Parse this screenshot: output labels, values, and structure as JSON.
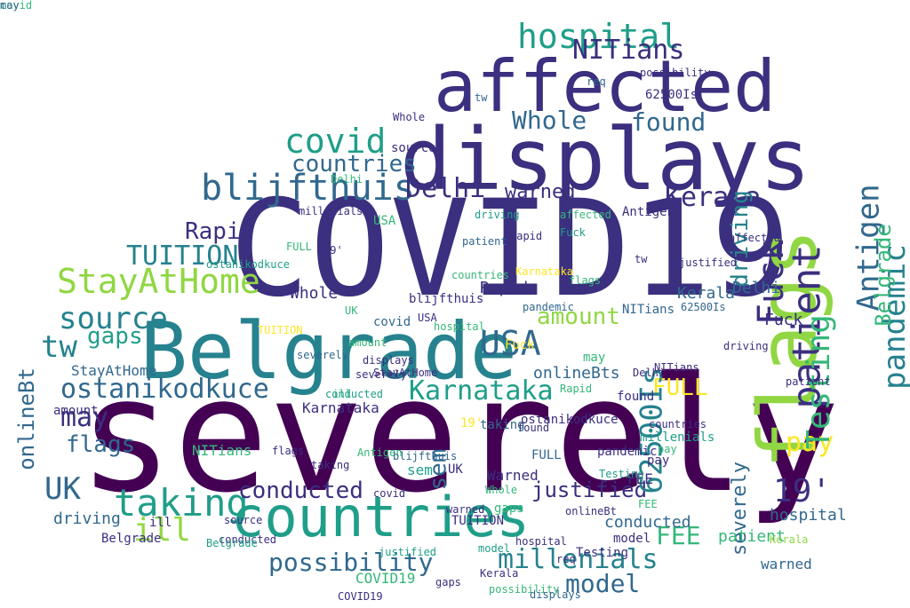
{
  "palette": {
    "dark_purple": "#440154",
    "indigo": "#3b2f7f",
    "slate_blue": "#31688e",
    "teal": "#26828e",
    "sea_green": "#1f9e89",
    "green": "#35b779",
    "lime": "#90d743",
    "yellow": "#fde725"
  },
  "words": [
    {
      "text": "severely",
      "color": "#440154",
      "rotate": false
    },
    {
      "text": "COVID19",
      "color": "#3b2f7f",
      "rotate": false
    },
    {
      "text": "displays",
      "color": "#3b2f7f",
      "rotate": false
    },
    {
      "text": "affected",
      "color": "#3b2f7f",
      "rotate": false
    },
    {
      "text": "Belgrade",
      "color": "#26828e",
      "rotate": false
    },
    {
      "text": "flags",
      "color": "#90d743",
      "rotate": false
    },
    {
      "text": "countries",
      "color": "#1f9e89",
      "rotate": false
    },
    {
      "text": "blijfthuis",
      "color": "#31688e",
      "rotate": false
    },
    {
      "text": "hospital",
      "color": "#1f9e89",
      "rotate": false
    },
    {
      "text": "covid",
      "color": "#1f9e89",
      "rotate": false
    },
    {
      "text": "countries",
      "color": "#31688e",
      "rotate": false
    },
    {
      "text": "NITians",
      "color": "#3b2f7f",
      "rotate": false
    },
    {
      "text": "Whole",
      "color": "#31688e",
      "rotate": false
    },
    {
      "text": "found",
      "color": "#31688e",
      "rotate": false
    },
    {
      "text": "Delhi",
      "color": "#3b2f7f",
      "rotate": false
    },
    {
      "text": "warned",
      "color": "#3b2f7f",
      "rotate": false
    },
    {
      "text": "Kerala",
      "color": "#3b2f7f",
      "rotate": false
    },
    {
      "text": "Rapid",
      "color": "#3b2f7f",
      "rotate": false
    },
    {
      "text": "TUITION",
      "color": "#26828e",
      "rotate": false
    },
    {
      "text": "StayAtHome",
      "color": "#90d743",
      "rotate": false
    },
    {
      "text": "source",
      "color": "#26828e",
      "rotate": false
    },
    {
      "text": "tw",
      "color": "#26828e",
      "rotate": false
    },
    {
      "text": "gaps",
      "color": "#1f9e89",
      "rotate": false
    },
    {
      "text": "USA",
      "color": "#31688e",
      "rotate": false
    },
    {
      "text": "amount",
      "color": "#90d743",
      "rotate": false
    },
    {
      "text": "ostanikodkuce",
      "color": "#31688e",
      "rotate": false
    },
    {
      "text": "Karnataka",
      "color": "#1f9e89",
      "rotate": false
    },
    {
      "text": "may",
      "color": "#3b2f7f",
      "rotate": false
    },
    {
      "text": "onlineBt",
      "color": "#31688e",
      "rotate": true
    },
    {
      "text": "flags",
      "color": "#31688e",
      "rotate": false
    },
    {
      "text": "UK",
      "color": "#31688e",
      "rotate": false
    },
    {
      "text": "taking",
      "color": "#1f9e89",
      "rotate": false
    },
    {
      "text": "conducted",
      "color": "#3b2f7f",
      "rotate": false
    },
    {
      "text": "ill",
      "color": "#90d743",
      "rotate": false
    },
    {
      "text": "possibility",
      "color": "#31688e",
      "rotate": false
    },
    {
      "text": "model",
      "color": "#31688e",
      "rotate": false
    },
    {
      "text": "millenials",
      "color": "#26828e",
      "rotate": false
    },
    {
      "text": "justified",
      "color": "#3b2f7f",
      "rotate": false
    },
    {
      "text": "19'",
      "color": "#3b2f7f",
      "rotate": false
    },
    {
      "text": "FEE",
      "color": "#35b779",
      "rotate": false
    },
    {
      "text": "pay",
      "color": "#fde725",
      "rotate": false
    },
    {
      "text": "FULL",
      "color": "#fde725",
      "rotate": false
    },
    {
      "text": "Fuck",
      "color": "#3b2f7f",
      "rotate": true
    },
    {
      "text": "patient",
      "color": "#3b2f7f",
      "rotate": true
    },
    {
      "text": "Testing",
      "color": "#35b779",
      "rotate": true
    },
    {
      "text": "pandemic",
      "color": "#26828e",
      "rotate": true
    },
    {
      "text": "Antigen",
      "color": "#31688e",
      "rotate": true
    },
    {
      "text": "driving",
      "color": "#26828e",
      "rotate": true
    },
    {
      "text": "62500Is",
      "color": "#26828e",
      "rotate": true
    },
    {
      "text": "sem",
      "color": "#31688e",
      "rotate": true
    },
    {
      "text": "Belgrade",
      "color": "#35b779",
      "rotate": true
    },
    {
      "text": "severely",
      "color": "#31688e",
      "rotate": true
    },
    {
      "text": "conducted",
      "color": "#31688e",
      "rotate": false
    },
    {
      "text": "hospital",
      "color": "#31688e",
      "rotate": false
    },
    {
      "text": "patient",
      "color": "#35b779",
      "rotate": false
    },
    {
      "text": "warned",
      "color": "#31688e",
      "rotate": false
    },
    {
      "text": "driving",
      "color": "#31688e",
      "rotate": false
    },
    {
      "text": "Whole",
      "color": "#3b2f7f",
      "rotate": false
    },
    {
      "text": "Fuck",
      "color": "#3b2f7f",
      "rotate": false
    },
    {
      "text": "Delhi",
      "color": "#31688e",
      "rotate": false
    },
    {
      "text": "Rapid",
      "color": "#3b2f7f",
      "rotate": false
    },
    {
      "text": "Kerala",
      "color": "#31688e",
      "rotate": false
    },
    {
      "text": "covid",
      "color": "#31688e",
      "rotate": false
    },
    {
      "text": "NITians",
      "color": "#31688e",
      "rotate": false
    },
    {
      "text": "StayAtHome",
      "color": "#31688e",
      "rotate": false
    },
    {
      "text": "onlineBts",
      "color": "#31688e",
      "rotate": false
    },
    {
      "text": "Karnataka",
      "color": "#3b2f7f",
      "rotate": false
    },
    {
      "text": "NITians",
      "color": "#35b779",
      "rotate": false
    },
    {
      "text": "Warned",
      "color": "#3b2f7f",
      "rotate": false
    },
    {
      "text": "FEE",
      "color": "#3b2f7f",
      "rotate": false
    },
    {
      "text": "taking",
      "color": "#31688e",
      "rotate": false
    },
    {
      "text": "amount",
      "color": "#3b2f7f",
      "rotate": false
    },
    {
      "text": "Belgrade",
      "color": "#3b2f7f",
      "rotate": false
    },
    {
      "text": "found",
      "color": "#3b2f7f",
      "rotate": false
    },
    {
      "text": "pay",
      "color": "#3b2f7f",
      "rotate": false
    },
    {
      "text": "UK",
      "color": "#3b2f7f",
      "rotate": false
    },
    {
      "text": "sem",
      "color": "#1f9e89",
      "rotate": false
    },
    {
      "text": "ill",
      "color": "#3b2f7f",
      "rotate": false
    },
    {
      "text": "gaps",
      "color": "#35b779",
      "rotate": false
    },
    {
      "text": "Testing",
      "color": "#3b2f7f",
      "rotate": false
    },
    {
      "text": "millenials",
      "color": "#1f9e89",
      "rotate": false
    },
    {
      "text": "COVID19",
      "color": "#35b779",
      "rotate": false
    },
    {
      "text": "model",
      "color": "#3b2f7f",
      "rotate": false
    },
    {
      "text": "severely",
      "color": "#31688e",
      "rotate": false
    },
    {
      "text": "TUITION",
      "color": "#3b2f7f",
      "rotate": false
    },
    {
      "text": "pandemic",
      "color": "#3b2f7f",
      "rotate": false
    },
    {
      "text": "source",
      "color": "#3b2f7f",
      "rotate": false
    },
    {
      "text": "Antigen",
      "color": "#3b2f7f",
      "rotate": false
    },
    {
      "text": "blijfthuis",
      "color": "#3b2f7f",
      "rotate": false
    },
    {
      "text": "62500Is",
      "color": "#3b2f7f",
      "rotate": false
    },
    {
      "text": "USA",
      "color": "#35b779",
      "rotate": false
    },
    {
      "text": "Fuck",
      "color": "#fde725",
      "rotate": false
    },
    {
      "text": "affected",
      "color": "#3b2f7f",
      "rotate": false
    },
    {
      "text": "possibility",
      "color": "#3b2f7f",
      "rotate": false
    },
    {
      "text": "req",
      "color": "#3b2f7f",
      "rotate": false
    },
    {
      "text": "tw",
      "color": "#3b2f7f",
      "rotate": false
    },
    {
      "text": "justified",
      "color": "#3b2f7f",
      "rotate": false
    },
    {
      "text": "ostanikodkuce",
      "color": "#3b2f7f",
      "rotate": false
    },
    {
      "text": "displays",
      "color": "#3b2f7f",
      "rotate": false
    },
    {
      "text": "19'",
      "color": "#fde725",
      "rotate": false
    },
    {
      "text": "FULL",
      "color": "#31688e",
      "rotate": false
    },
    {
      "text": "may",
      "color": "#35b779",
      "rotate": false
    },
    {
      "text": "hospital",
      "color": "#3b2f7f",
      "rotate": false
    },
    {
      "text": "Kerala",
      "color": "#3b2f7f",
      "rotate": false
    },
    {
      "text": "patient",
      "color": "#3b2f7f",
      "rotate": false
    },
    {
      "text": "driving",
      "color": "#3b2f7f",
      "rotate": false
    },
    {
      "text": "Delhi",
      "color": "#3b2f7f",
      "rotate": false
    },
    {
      "text": "countries",
      "color": "#3b2f7f",
      "rotate": false
    },
    {
      "text": "conducted",
      "color": "#3b2f7f",
      "rotate": false
    },
    {
      "text": "flags",
      "color": "#3b2f7f",
      "rotate": false
    },
    {
      "text": "Whole",
      "color": "#35b779",
      "rotate": false
    },
    {
      "text": "Rapid",
      "color": "#35b779",
      "rotate": false
    },
    {
      "text": "covid",
      "color": "#3b2f7f",
      "rotate": false
    },
    {
      "text": "amount",
      "color": "#35b779",
      "rotate": false
    },
    {
      "text": "StayAtHome",
      "color": "#3b2f7f",
      "rotate": false
    },
    {
      "text": "taking",
      "color": "#3b2f7f",
      "rotate": false
    },
    {
      "text": "Karnataka",
      "color": "#fde725",
      "rotate": false
    },
    {
      "text": "onlineBt",
      "color": "#3b2f7f",
      "rotate": false
    },
    {
      "text": "millenials",
      "color": "#3b2f7f",
      "rotate": false
    },
    {
      "text": "COVID19",
      "color": "#3b2f7f",
      "rotate": false
    },
    {
      "text": "severely",
      "color": "#3b2f7f",
      "rotate": false
    },
    {
      "text": "Belgrade",
      "color": "#1f9e89",
      "rotate": false
    },
    {
      "text": "warned",
      "color": "#3b2f7f",
      "rotate": false
    },
    {
      "text": "found",
      "color": "#3b2f7f",
      "rotate": false
    },
    {
      "text": "Testing",
      "color": "#1f9e89",
      "rotate": false
    },
    {
      "text": "sem",
      "color": "#3b2f7f",
      "rotate": false
    },
    {
      "text": "gaps",
      "color": "#3b2f7f",
      "rotate": false
    },
    {
      "text": "model",
      "color": "#1f9e89",
      "rotate": false
    },
    {
      "text": "Antigen",
      "color": "#35b779",
      "rotate": false
    },
    {
      "text": "pandemic",
      "color": "#31688e",
      "rotate": false
    },
    {
      "text": "possibility",
      "color": "#35b779",
      "rotate": false
    },
    {
      "text": "TUITION",
      "color": "#fde725",
      "rotate": false
    },
    {
      "text": "blijfthuis",
      "color": "#31688e",
      "rotate": false
    },
    {
      "text": "source",
      "color": "#3b2f7f",
      "rotate": false
    },
    {
      "text": "req",
      "color": "#31688e",
      "rotate": false
    },
    {
      "text": "NITians",
      "color": "#3b2f7f",
      "rotate": false
    },
    {
      "text": "62500Is",
      "color": "#31688e",
      "rotate": false
    },
    {
      "text": "justified",
      "color": "#1f9e89",
      "rotate": false
    },
    {
      "text": "UK",
      "color": "#35b779",
      "rotate": false
    },
    {
      "text": "FEE",
      "color": "#35b779",
      "rotate": false
    },
    {
      "text": "pay",
      "color": "#35b779",
      "rotate": false
    },
    {
      "text": "Kerala",
      "color": "#90d743",
      "rotate": false
    },
    {
      "text": "displays",
      "color": "#31688e",
      "rotate": false
    },
    {
      "text": "Delhi",
      "color": "#35b779",
      "rotate": false
    },
    {
      "text": "countries",
      "color": "#35b779",
      "rotate": false
    },
    {
      "text": "ostanikodkuce",
      "color": "#1f9e89",
      "rotate": false
    },
    {
      "text": "ill",
      "color": "#35b779",
      "rotate": false
    },
    {
      "text": "tw",
      "color": "#31688e",
      "rotate": false
    },
    {
      "text": "USA",
      "color": "#3b2f7f",
      "rotate": false
    },
    {
      "text": "Fuck",
      "color": "#1f9e89",
      "rotate": false
    },
    {
      "text": "hospital",
      "color": "#35b779",
      "rotate": false
    },
    {
      "text": "patient",
      "color": "#31688e",
      "rotate": false
    },
    {
      "text": "affected",
      "color": "#35b779",
      "rotate": false
    },
    {
      "text": "driving",
      "color": "#1f9e89",
      "rotate": false
    },
    {
      "text": "Whole",
      "color": "#3b2f7f",
      "rotate": false
    },
    {
      "text": "Rapid",
      "color": "#3b2f7f",
      "rotate": false
    },
    {
      "text": "19'",
      "color": "#3b2f7f",
      "rotate": false
    },
    {
      "text": "FULL",
      "color": "#35b779",
      "rotate": false
    },
    {
      "text": "conducted",
      "color": "#1f9e89",
      "rotate": false
    },
    {
      "text": "flags",
      "color": "#35b779",
      "rotate": false
    },
    {
      "text": "covid",
      "color": "#35b779",
      "rotate": false
    },
    {
      "text": "may",
      "color": "#31688e",
      "rotate": false
    }
  ]
}
